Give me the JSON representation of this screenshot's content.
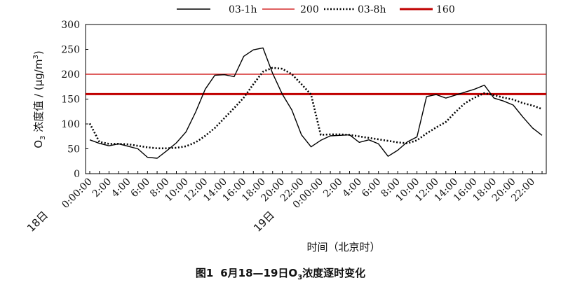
{
  "chart_data": {
    "type": "line",
    "legend": {
      "placement": "top",
      "items": [
        {
          "label": "03-1h",
          "color": "#000000",
          "style": "solid"
        },
        {
          "label": "200",
          "color": "#cc0000",
          "style": "solid-thin"
        },
        {
          "label": "03-8h",
          "color": "#000000",
          "style": "dotted"
        },
        {
          "label": "160",
          "color": "#c00000",
          "style": "solid-thick"
        }
      ]
    },
    "xlabel": "时间（北京时）",
    "ylabel_main": "O",
    "ylabel_sub": "3",
    "ylabel_rest": " 浓度值 / (μg/m",
    "ylabel_sup": "3",
    "ylabel_end": ")",
    "ylim": [
      0,
      300
    ],
    "yticks": [
      0,
      50,
      100,
      150,
      200,
      250,
      300
    ],
    "hours": 48,
    "day_labels": [
      {
        "text": "18日",
        "hour": 0
      },
      {
        "text": "19日",
        "hour": 24
      }
    ],
    "xtick_labels": [
      {
        "hour": 0,
        "text": "0:00:00"
      },
      {
        "hour": 2,
        "text": "2:00"
      },
      {
        "hour": 4,
        "text": "4:00"
      },
      {
        "hour": 6,
        "text": "6:00"
      },
      {
        "hour": 8,
        "text": "8:00"
      },
      {
        "hour": 10,
        "text": "10:00"
      },
      {
        "hour": 12,
        "text": "12:00"
      },
      {
        "hour": 14,
        "text": "14:00"
      },
      {
        "hour": 16,
        "text": "16:00"
      },
      {
        "hour": 18,
        "text": "18:00"
      },
      {
        "hour": 20,
        "text": "20:00"
      },
      {
        "hour": 22,
        "text": "22:00"
      },
      {
        "hour": 24,
        "text": "0:00:00"
      },
      {
        "hour": 26,
        "text": "2:00"
      },
      {
        "hour": 28,
        "text": "4:00"
      },
      {
        "hour": 30,
        "text": "6:00"
      },
      {
        "hour": 32,
        "text": "8:00"
      },
      {
        "hour": 34,
        "text": "10:00"
      },
      {
        "hour": 36,
        "text": "12:00"
      },
      {
        "hour": 38,
        "text": "14:00"
      },
      {
        "hour": 40,
        "text": "16:00"
      },
      {
        "hour": 42,
        "text": "18:00"
      },
      {
        "hour": 44,
        "text": "20:00"
      },
      {
        "hour": 46,
        "text": "22:00"
      }
    ],
    "series": [
      {
        "name": "03-1h",
        "color": "#000000",
        "style": "solid",
        "values": [
          68,
          61,
          56,
          60,
          55,
          50,
          33,
          31,
          46,
          62,
          84,
          124,
          170,
          198,
          199,
          195,
          236,
          249,
          253,
          202,
          160,
          128,
          78,
          54,
          67,
          76,
          77,
          78,
          63,
          68,
          60,
          35,
          47,
          64,
          74,
          155,
          159,
          152,
          158,
          164,
          170,
          178,
          152,
          146,
          138,
          114,
          92,
          77
        ]
      },
      {
        "name": "03-8h",
        "color": "#000000",
        "style": "dotted",
        "values": [
          101,
          64,
          60,
          60,
          59,
          56,
          53,
          51,
          51,
          52,
          55,
          63,
          76,
          92,
          112,
          132,
          153,
          180,
          205,
          213,
          211,
          200,
          180,
          159,
          78,
          79,
          79,
          78,
          75,
          72,
          69,
          66,
          63,
          61,
          67,
          81,
          93,
          104,
          124,
          142,
          153,
          162,
          158,
          153,
          149,
          142,
          137,
          130
        ]
      },
      {
        "name": "200",
        "color": "#cc0000",
        "style": "solid-thin",
        "constant": 200
      },
      {
        "name": "160",
        "color": "#c00000",
        "style": "solid-thick",
        "constant": 160
      }
    ]
  },
  "caption": {
    "prefix": "图1",
    "text_before": "6月18—19日O",
    "sub": "3",
    "text_after": "浓度逐时变化"
  }
}
